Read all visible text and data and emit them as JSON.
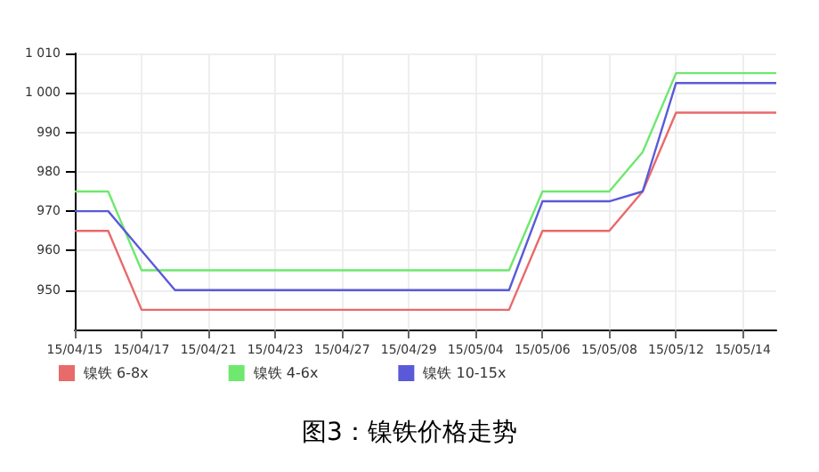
{
  "chart_data": {
    "type": "line",
    "title": "图3：镍铁价格走势",
    "categories": [
      "15/04/15",
      null,
      "15/04/17",
      null,
      "15/04/21",
      null,
      "15/04/23",
      null,
      "15/04/27",
      null,
      "15/04/29",
      null,
      "15/05/04",
      null,
      "15/05/06",
      null,
      "15/05/08",
      null,
      "15/05/12",
      null,
      "15/05/14",
      null
    ],
    "series": [
      {
        "name": "镍铁 6-8x",
        "color": "#e86a6a",
        "values": [
          965,
          965,
          945,
          945,
          945,
          945,
          945,
          945,
          945,
          945,
          945,
          945,
          945,
          945,
          965,
          965,
          965,
          975,
          995,
          995,
          995,
          995
        ]
      },
      {
        "name": "镍铁 4-6x",
        "color": "#6ee86e",
        "values": [
          975,
          975,
          955,
          955,
          955,
          955,
          955,
          955,
          955,
          955,
          955,
          955,
          955,
          955,
          975,
          975,
          975,
          985,
          1005,
          1005,
          1005,
          1005
        ]
      },
      {
        "name": "镍铁 10-15x",
        "color": "#5a5ad8",
        "values": [
          970,
          970,
          960,
          950,
          950,
          950,
          950,
          950,
          950,
          950,
          950,
          950,
          950,
          950,
          972.5,
          972.5,
          972.5,
          975,
          1002.5,
          1002.5,
          1002.5,
          1002.5
        ]
      }
    ],
    "ylim": [
      940,
      1010
    ],
    "yticks": [
      950,
      960,
      970,
      980,
      990,
      {
        "value": 1000,
        "label": "1 000"
      },
      {
        "value": 1010,
        "label": "1 010"
      }
    ],
    "grid": true,
    "legend": "bottom left",
    "marker": "none",
    "line_style": "solid"
  }
}
